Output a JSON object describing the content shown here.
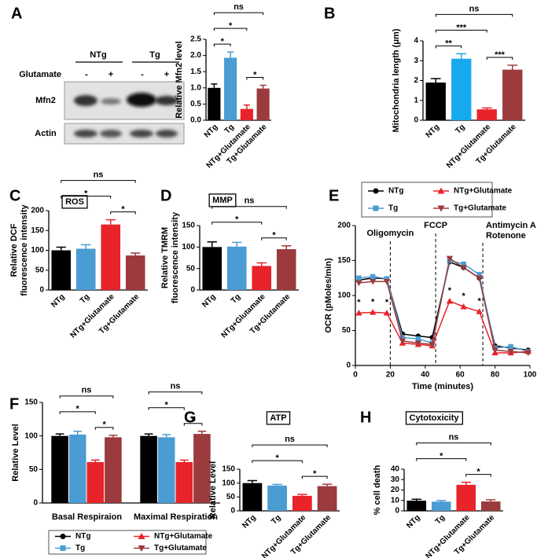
{
  "blot": {
    "groups": [
      "NTg",
      "Tg"
    ],
    "treatment": "Glutamate",
    "signs": [
      "-",
      "+",
      "-",
      "+"
    ],
    "rows": [
      "Mfn2",
      "Actin"
    ]
  },
  "chart_data": [
    {
      "type": "bar",
      "panel": "A",
      "ylabel": "Relative Mfn2 level",
      "categories": [
        "NTg",
        "Tg",
        "NTg+Glutamate",
        "Tg+Glutamate"
      ],
      "values": [
        1.0,
        1.93,
        0.35,
        0.98
      ],
      "errors": [
        0.12,
        0.18,
        0.12,
        0.1
      ],
      "colors": [
        "#000000",
        "#4b9cd3",
        "#e8232a",
        "#9b3b3d"
      ],
      "ylim": [
        0,
        2.5
      ],
      "yticks": [
        {
          "value": 0,
          "label": "0.0"
        },
        {
          "value": 0.5,
          "label": "0.5"
        },
        {
          "value": 1,
          "label": "1.0"
        },
        {
          "value": 1.5,
          "label": "1.5"
        },
        {
          "value": 2,
          "label": "2.0"
        },
        {
          "value": 2.5,
          "label": "2.5"
        }
      ],
      "brackets": [
        {
          "from": 0,
          "to": 1,
          "label": "*"
        },
        {
          "from": 2,
          "to": 3,
          "label": "*"
        },
        {
          "from": 0,
          "to": 2,
          "label": "*"
        },
        {
          "from": 0,
          "to": 3,
          "label": "ns"
        }
      ]
    },
    {
      "type": "bar",
      "panel": "B",
      "ylabel": "Mitochondria length (μm)",
      "categories": [
        "NTg",
        "Tg",
        "NTg+Glutamate",
        "Tg+Glutamate"
      ],
      "values": [
        1.9,
        3.1,
        0.55,
        2.55
      ],
      "errors": [
        0.2,
        0.25,
        0.07,
        0.22
      ],
      "colors": [
        "#000000",
        "#17a9ee",
        "#e8232a",
        "#9b3b3d"
      ],
      "ylim": [
        0,
        4
      ],
      "yticks": [
        0,
        1,
        2,
        3,
        4
      ],
      "brackets": [
        {
          "from": 0,
          "to": 1,
          "label": "**"
        },
        {
          "from": 2,
          "to": 3,
          "label": "***"
        },
        {
          "from": 0,
          "to": 2,
          "label": "***"
        },
        {
          "from": 0,
          "to": 3,
          "label": "ns"
        }
      ]
    },
    {
      "type": "bar",
      "panel": "C",
      "title": "ROS",
      "ylabel": [
        "Relative DCF",
        "fluorescence intensity"
      ],
      "categories": [
        "NTg",
        "Tg",
        "NTg+Glutamate",
        "Tg+Glutamate"
      ],
      "values": [
        100,
        104,
        165,
        87
      ],
      "errors": [
        8,
        10,
        12,
        6
      ],
      "colors": [
        "#000000",
        "#4b9cd3",
        "#e8232a",
        "#9b3b3d"
      ],
      "ylim": [
        0,
        200
      ],
      "yticks": [
        0,
        50,
        100,
        150,
        200
      ],
      "brackets": [
        {
          "from": 2,
          "to": 3,
          "label": "*"
        },
        {
          "from": 0,
          "to": 2,
          "label": "*"
        },
        {
          "from": 0,
          "to": 3,
          "label": "ns"
        }
      ]
    },
    {
      "type": "bar",
      "panel": "D",
      "title": "MMP",
      "ylabel": [
        "Relative TMRM",
        "fluorescence intensity"
      ],
      "categories": [
        "NTg",
        "Tg",
        "NTg+Glutamate",
        "Tg+Glutamate"
      ],
      "values": [
        100,
        101,
        56,
        95
      ],
      "errors": [
        12,
        10,
        7,
        8
      ],
      "colors": [
        "#000000",
        "#4b9cd3",
        "#e8232a",
        "#9b3b3d"
      ],
      "ylim": [
        0,
        150
      ],
      "yticks": [
        0,
        50,
        100,
        150
      ],
      "brackets": [
        {
          "from": 2,
          "to": 3,
          "label": "*"
        },
        {
          "from": 0,
          "to": 2,
          "label": "*"
        },
        {
          "from": 0,
          "to": 3,
          "label": "ns"
        }
      ]
    },
    {
      "type": "line",
      "panel": "E",
      "ylabel": "OCR (pMoles/min)",
      "xlabel": "Time (minutes)",
      "x": [
        2,
        10,
        18,
        27,
        36,
        44,
        54,
        62,
        71,
        80,
        89,
        99
      ],
      "series": [
        {
          "name": "NTg",
          "color": "#000000",
          "marker": "circle",
          "values": [
            122,
            125,
            124,
            45,
            42,
            40,
            148,
            140,
            125,
            28,
            25,
            22
          ]
        },
        {
          "name": "Tg",
          "color": "#4b9cd3",
          "marker": "square",
          "values": [
            125,
            127,
            124,
            40,
            38,
            32,
            150,
            145,
            130,
            25,
            27,
            20
          ]
        },
        {
          "name": "NTg+Glutamate",
          "color": "#e8232a",
          "marker": "triangle-up",
          "values": [
            75,
            76,
            75,
            32,
            30,
            28,
            92,
            84,
            77,
            18,
            18,
            20
          ]
        },
        {
          "name": "Tg+Glutamate",
          "color": "#9b3b3d",
          "marker": "triangle-down",
          "values": [
            118,
            120,
            120,
            35,
            32,
            30,
            153,
            140,
            125,
            22,
            20,
            18
          ]
        }
      ],
      "xlim": [
        0,
        100
      ],
      "xticks": [
        0,
        20,
        40,
        60,
        80,
        100
      ],
      "ylim": [
        0,
        200
      ],
      "yticks": [
        0,
        50,
        100,
        150,
        200
      ],
      "annotations": [
        {
          "x": 20,
          "label": [
            "Oligomycin"
          ]
        },
        {
          "x": 46,
          "label": [
            "FCCP"
          ]
        },
        {
          "x": 73,
          "label": [
            "Antimycin A",
            "Rotenone"
          ]
        }
      ],
      "star_points": [
        0,
        1,
        2,
        6,
        7,
        8
      ],
      "star_series": 2,
      "star_label": "*"
    },
    {
      "type": "bar",
      "panel": "F",
      "ylabel": "Relative Level",
      "categories": [
        "Basal Respiraion",
        "Maximal Respiration"
      ],
      "series": [
        {
          "name": "NTg",
          "color": "#000000",
          "marker": "circle",
          "values": [
            100,
            100
          ],
          "errors": [
            3,
            3
          ]
        },
        {
          "name": "Tg",
          "color": "#4b9cd3",
          "marker": "square",
          "values": [
            102,
            98
          ],
          "errors": [
            5,
            4
          ]
        },
        {
          "name": "NTg+Glutamate",
          "color": "#e8232a",
          "marker": "triangle-up",
          "values": [
            61,
            61
          ],
          "errors": [
            3,
            3
          ]
        },
        {
          "name": "Tg+Glutamate",
          "color": "#9b3b3d",
          "marker": "triangle-down",
          "values": [
            98,
            103
          ],
          "errors": [
            3,
            4
          ]
        }
      ],
      "ylim": [
        0,
        150
      ],
      "yticks": [
        0,
        50,
        100,
        150
      ],
      "brackets": [
        {
          "group": 0,
          "from": 2,
          "to": 3,
          "label": "*"
        },
        {
          "group": 0,
          "from": 0,
          "to": 2,
          "label": "*"
        },
        {
          "group": 0,
          "from": 0,
          "to": 3,
          "label": "ns"
        },
        {
          "group": 1,
          "from": 2,
          "to": 3,
          "label": "*"
        },
        {
          "group": 1,
          "from": 0,
          "to": 2,
          "label": "*"
        },
        {
          "group": 1,
          "from": 0,
          "to": 3,
          "label": "ns"
        }
      ]
    },
    {
      "type": "bar",
      "panel": "G",
      "title": "ATP",
      "ylabel": "Relative Level",
      "categories": [
        "NTg",
        "Tg",
        "NTg+Glutamate",
        "Tg+Glutamate"
      ],
      "values": [
        100,
        91,
        54,
        89
      ],
      "errors": [
        9,
        4,
        5,
        7
      ],
      "colors": [
        "#000000",
        "#4b9cd3",
        "#e8232a",
        "#9b3b3d"
      ],
      "ylim": [
        0,
        150
      ],
      "yticks": [
        0,
        50,
        100,
        150
      ],
      "brackets": [
        {
          "from": 2,
          "to": 3,
          "label": "*"
        },
        {
          "from": 0,
          "to": 2,
          "label": "*"
        },
        {
          "from": 0,
          "to": 3,
          "label": "ns"
        }
      ]
    },
    {
      "type": "bar",
      "panel": "H",
      "title": "Cytotoxicity",
      "ylabel": "% cell death",
      "categories": [
        "NTg",
        "Tg",
        "NTg+Glutamate",
        "Tg+Glutamate"
      ],
      "values": [
        9.8,
        8.8,
        25,
        9
      ],
      "errors": [
        1.3,
        1,
        2.5,
        1.7
      ],
      "colors": [
        "#000000",
        "#4b9cd3",
        "#e8232a",
        "#9b3b3d"
      ],
      "ylim": [
        0,
        40
      ],
      "yticks": [
        0,
        10,
        20,
        30,
        40
      ],
      "brackets": [
        {
          "from": 2,
          "to": 3,
          "label": "*"
        },
        {
          "from": 0,
          "to": 2,
          "label": "*"
        },
        {
          "from": 0,
          "to": 3,
          "label": "ns"
        }
      ]
    }
  ]
}
